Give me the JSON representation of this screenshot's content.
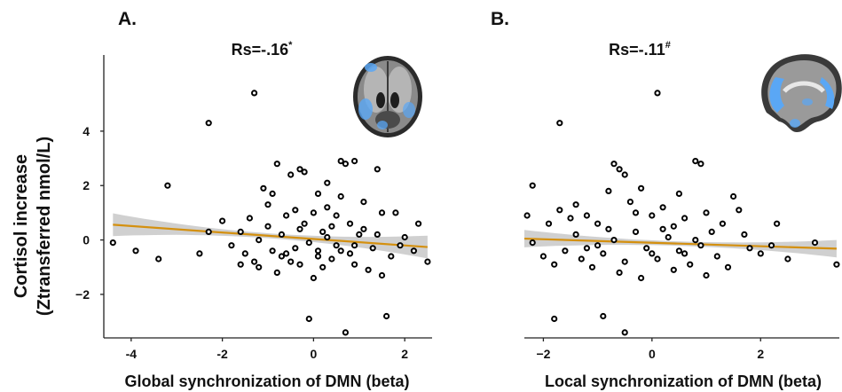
{
  "y_axis_label_line1": "Cortisol increase",
  "y_axis_label_line2": "(Ztransferred nmol/L)",
  "chart_data": [
    {
      "type": "scatter",
      "panel_letter": "A.",
      "title": "Rs=-.16",
      "title_superscript": "*",
      "xlabel": "Global synchronization of DMN (beta)",
      "ylabel": "Cortisol increase (Ztransferred nmol/L)",
      "xlim": [
        -4.6,
        2.6
      ],
      "ylim": [
        -3.6,
        6.8
      ],
      "xticks": [
        -4,
        -2,
        0,
        2
      ],
      "yticks": [
        4,
        2,
        0,
        -2
      ],
      "xtick_labels": [
        "-4",
        "-2",
        "0",
        "2"
      ],
      "ytick_labels": [
        "4",
        "2",
        "0",
        "−2"
      ],
      "fit": {
        "x": [
          -4.4,
          2.5
        ],
        "y": [
          0.56,
          -0.26
        ],
        "ci_half_width_edge": 0.42,
        "ci_half_width_center": 0.09,
        "color": "#d4900f"
      },
      "points": [
        {
          "x": -1.3,
          "y": 5.4
        },
        {
          "x": -2.3,
          "y": 4.3
        },
        {
          "x": -3.2,
          "y": 2.0
        },
        {
          "x": -4.4,
          "y": -0.1
        },
        {
          "x": -3.9,
          "y": -0.4
        },
        {
          "x": -3.4,
          "y": -0.7
        },
        {
          "x": -2.5,
          "y": -0.5
        },
        {
          "x": -2.3,
          "y": 0.3
        },
        {
          "x": -2.0,
          "y": 0.7
        },
        {
          "x": -1.8,
          "y": -0.2
        },
        {
          "x": -1.6,
          "y": 0.3
        },
        {
          "x": -1.5,
          "y": -0.5
        },
        {
          "x": -1.4,
          "y": 0.8
        },
        {
          "x": -1.3,
          "y": -0.8
        },
        {
          "x": -1.1,
          "y": 1.9
        },
        {
          "x": -1.0,
          "y": 1.3
        },
        {
          "x": -0.8,
          "y": 2.8
        },
        {
          "x": -0.5,
          "y": 2.4
        },
        {
          "x": -0.3,
          "y": 2.6
        },
        {
          "x": -0.2,
          "y": 2.5
        },
        {
          "x": 0.1,
          "y": 1.7
        },
        {
          "x": 0.3,
          "y": 1.2
        },
        {
          "x": 0.5,
          "y": 0.9
        },
        {
          "x": 0.6,
          "y": 2.9
        },
        {
          "x": 0.7,
          "y": 2.8
        },
        {
          "x": 0.9,
          "y": 2.9
        },
        {
          "x": 1.4,
          "y": 2.6
        },
        {
          "x": 1.1,
          "y": 1.4
        },
        {
          "x": 1.5,
          "y": 1.0
        },
        {
          "x": 1.8,
          "y": 1.0
        },
        {
          "x": 2.3,
          "y": 0.6
        },
        {
          "x": 2.0,
          "y": 0.1
        },
        {
          "x": 2.2,
          "y": -0.4
        },
        {
          "x": 2.5,
          "y": -0.8
        },
        {
          "x": 1.7,
          "y": -0.6
        },
        {
          "x": 1.3,
          "y": -0.3
        },
        {
          "x": 1.0,
          "y": 0.2
        },
        {
          "x": 0.8,
          "y": -0.5
        },
        {
          "x": 0.5,
          "y": -0.2
        },
        {
          "x": 0.3,
          "y": 0.1
        },
        {
          "x": 0.1,
          "y": -0.6
        },
        {
          "x": -0.1,
          "y": -0.1
        },
        {
          "x": -0.3,
          "y": 0.4
        },
        {
          "x": -0.5,
          "y": -0.8
        },
        {
          "x": -0.7,
          "y": 0.2
        },
        {
          "x": -0.9,
          "y": -0.4
        },
        {
          "x": -0.6,
          "y": 0.9
        },
        {
          "x": -0.4,
          "y": 1.1
        },
        {
          "x": -0.2,
          "y": 0.6
        },
        {
          "x": 0.0,
          "y": 1.0
        },
        {
          "x": 0.2,
          "y": -1.0
        },
        {
          "x": 0.4,
          "y": -0.7
        },
        {
          "x": 0.6,
          "y": -0.4
        },
        {
          "x": 0.9,
          "y": -0.9
        },
        {
          "x": 1.2,
          "y": -1.1
        },
        {
          "x": 1.5,
          "y": -1.3
        },
        {
          "x": 0.0,
          "y": -1.4
        },
        {
          "x": -0.8,
          "y": -1.2
        },
        {
          "x": -1.2,
          "y": -1.0
        },
        {
          "x": -1.6,
          "y": -0.9
        },
        {
          "x": -0.1,
          "y": -2.9
        },
        {
          "x": 0.7,
          "y": -3.4
        },
        {
          "x": 1.6,
          "y": -2.8
        },
        {
          "x": -0.6,
          "y": -0.5
        },
        {
          "x": -0.3,
          "y": -0.9
        },
        {
          "x": 0.2,
          "y": 0.3
        },
        {
          "x": 0.4,
          "y": 0.5
        },
        {
          "x": 0.8,
          "y": 0.6
        },
        {
          "x": 1.1,
          "y": 0.4
        },
        {
          "x": -1.0,
          "y": 0.5
        },
        {
          "x": -1.2,
          "y": 0.0
        },
        {
          "x": 0.9,
          "y": -0.2
        },
        {
          "x": 1.4,
          "y": 0.2
        },
        {
          "x": 1.9,
          "y": -0.2
        },
        {
          "x": -0.4,
          "y": -0.3
        },
        {
          "x": 0.1,
          "y": -0.4
        },
        {
          "x": 0.6,
          "y": 1.6
        },
        {
          "x": -0.9,
          "y": 1.7
        },
        {
          "x": 0.3,
          "y": 2.1
        },
        {
          "x": -0.7,
          "y": -0.6
        }
      ]
    },
    {
      "type": "scatter",
      "panel_letter": "B.",
      "title": "Rs=-.11",
      "title_superscript": "#",
      "xlabel": "Local synchronization of DMN (beta)",
      "ylabel": "Cortisol increase (Ztransferred nmol/L)",
      "xlim": [
        -2.35,
        3.45
      ],
      "ylim": [
        -3.6,
        6.8
      ],
      "xticks": [
        -2,
        0,
        2
      ],
      "yticks": [
        4,
        2,
        0,
        -2
      ],
      "xtick_labels": [
        "−2",
        "0",
        "2"
      ],
      "ytick_labels": [
        "4",
        "2",
        "0",
        "−2"
      ],
      "fit": {
        "x": [
          -2.35,
          3.4
        ],
        "y": [
          0.05,
          -0.32
        ],
        "ci_half_width_edge": 0.32,
        "ci_half_width_center": 0.08,
        "color": "#d4900f"
      },
      "points": [
        {
          "x": 0.1,
          "y": 5.4
        },
        {
          "x": -1.7,
          "y": 4.3
        },
        {
          "x": -2.2,
          "y": 2.0
        },
        {
          "x": -2.3,
          "y": 0.9
        },
        {
          "x": -2.2,
          "y": -0.1
        },
        {
          "x": -1.9,
          "y": 0.6
        },
        {
          "x": -1.7,
          "y": 1.1
        },
        {
          "x": -1.5,
          "y": 0.8
        },
        {
          "x": -1.4,
          "y": 1.3
        },
        {
          "x": -1.2,
          "y": -0.3
        },
        {
          "x": -1.0,
          "y": 0.6
        },
        {
          "x": -0.8,
          "y": 1.8
        },
        {
          "x": -0.7,
          "y": 2.8
        },
        {
          "x": -0.6,
          "y": 2.6
        },
        {
          "x": -0.5,
          "y": 2.4
        },
        {
          "x": -0.4,
          "y": 1.4
        },
        {
          "x": -0.2,
          "y": 1.9
        },
        {
          "x": 0.0,
          "y": 0.9
        },
        {
          "x": 0.2,
          "y": 1.2
        },
        {
          "x": 0.4,
          "y": 0.5
        },
        {
          "x": 0.6,
          "y": 0.8
        },
        {
          "x": 0.8,
          "y": 2.9
        },
        {
          "x": 0.9,
          "y": 2.8
        },
        {
          "x": 1.0,
          "y": 1.0
        },
        {
          "x": 1.3,
          "y": 0.6
        },
        {
          "x": 1.6,
          "y": 1.1
        },
        {
          "x": 1.5,
          "y": 1.6
        },
        {
          "x": 2.3,
          "y": 0.6
        },
        {
          "x": 2.5,
          "y": -0.7
        },
        {
          "x": 2.0,
          "y": -0.5
        },
        {
          "x": 3.0,
          "y": -0.1
        },
        {
          "x": 3.4,
          "y": -0.9
        },
        {
          "x": 1.8,
          "y": -0.3
        },
        {
          "x": 1.2,
          "y": -0.6
        },
        {
          "x": 0.9,
          "y": -0.2
        },
        {
          "x": 0.7,
          "y": -0.9
        },
        {
          "x": 0.5,
          "y": -0.4
        },
        {
          "x": 0.3,
          "y": 0.1
        },
        {
          "x": 0.1,
          "y": -0.7
        },
        {
          "x": -0.1,
          "y": -0.3
        },
        {
          "x": -0.3,
          "y": 0.3
        },
        {
          "x": -0.5,
          "y": -0.8
        },
        {
          "x": -0.7,
          "y": 0.0
        },
        {
          "x": -0.9,
          "y": -0.5
        },
        {
          "x": -1.1,
          "y": -1.0
        },
        {
          "x": -1.3,
          "y": -0.7
        },
        {
          "x": -1.6,
          "y": -0.4
        },
        {
          "x": -1.8,
          "y": -0.9
        },
        {
          "x": -2.0,
          "y": -0.6
        },
        {
          "x": -0.6,
          "y": -1.2
        },
        {
          "x": -0.2,
          "y": -1.4
        },
        {
          "x": 0.4,
          "y": -1.1
        },
        {
          "x": 1.0,
          "y": -1.3
        },
        {
          "x": 1.4,
          "y": -1.0
        },
        {
          "x": -1.8,
          "y": -2.9
        },
        {
          "x": -0.9,
          "y": -2.8
        },
        {
          "x": -0.5,
          "y": -3.4
        },
        {
          "x": 0.2,
          "y": 0.4
        },
        {
          "x": 0.6,
          "y": -0.5
        },
        {
          "x": 1.1,
          "y": 0.3
        },
        {
          "x": -0.8,
          "y": 0.4
        },
        {
          "x": -1.4,
          "y": 0.2
        },
        {
          "x": 0.0,
          "y": -0.5
        },
        {
          "x": 0.8,
          "y": 0.0
        },
        {
          "x": 1.7,
          "y": 0.2
        },
        {
          "x": -1.0,
          "y": -0.2
        },
        {
          "x": -0.3,
          "y": 1.0
        },
        {
          "x": 0.5,
          "y": 1.7
        },
        {
          "x": -1.2,
          "y": 0.9
        },
        {
          "x": 2.2,
          "y": -0.2
        }
      ]
    }
  ]
}
